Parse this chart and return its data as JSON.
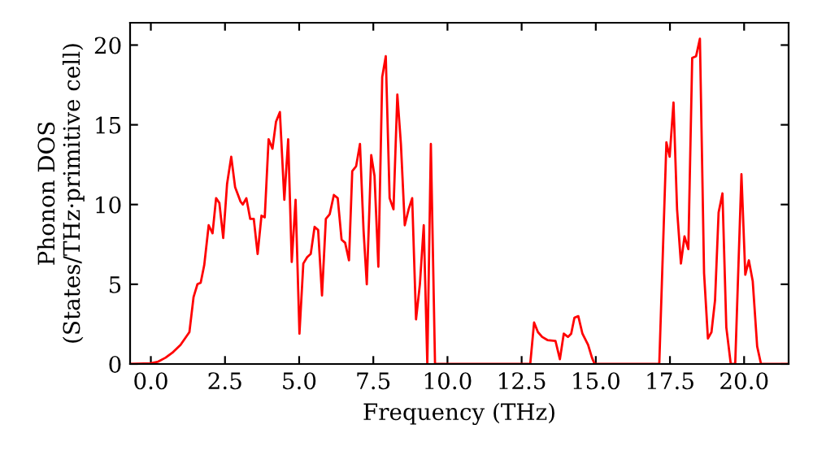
{
  "chart_data": {
    "type": "line",
    "xlabel": "Frequency (THz)",
    "ylabel": "Phonon DOS\n(States/THz·primitive cell)",
    "xlim": [
      -0.7,
      21.5
    ],
    "ylim": [
      0,
      21.4
    ],
    "xticks": [
      {
        "value": 0,
        "label": "0.0"
      },
      {
        "value": 2.5,
        "label": "2.5"
      },
      {
        "value": 5,
        "label": "5.0"
      },
      {
        "value": 7.5,
        "label": "7.5"
      },
      {
        "value": 10,
        "label": "10.0"
      },
      {
        "value": 12.5,
        "label": "12.5"
      },
      {
        "value": 15,
        "label": "15.0"
      },
      {
        "value": 17.5,
        "label": "17.5"
      },
      {
        "value": 20,
        "label": "20.0"
      }
    ],
    "yticks": [
      0,
      5,
      10,
      15,
      20
    ],
    "grid": false,
    "legend": false,
    "marker": "none",
    "line_style": "solid",
    "series": [
      {
        "color": "#ff0000",
        "x": [
          -0.7,
          0,
          0.25,
          0.5,
          0.75,
          1.0,
          1.3,
          1.44,
          1.57,
          1.68,
          1.8,
          1.95,
          2.08,
          2.2,
          2.31,
          2.44,
          2.57,
          2.71,
          2.84,
          3.02,
          3.1,
          3.22,
          3.35,
          3.47,
          3.6,
          3.73,
          3.84,
          3.97,
          4.1,
          4.22,
          4.35,
          4.5,
          4.63,
          4.75,
          4.88,
          5.01,
          5.14,
          5.27,
          5.39,
          5.52,
          5.64,
          5.77,
          5.9,
          6.03,
          6.17,
          6.3,
          6.43,
          6.55,
          6.68,
          6.79,
          6.92,
          7.05,
          7.17,
          7.28,
          7.43,
          7.54,
          7.67,
          7.8,
          7.92,
          8.05,
          8.18,
          8.31,
          8.43,
          8.56,
          8.69,
          8.81,
          8.94,
          9.07,
          9.2,
          9.32,
          9.44,
          9.58,
          12.79,
          12.92,
          13.05,
          13.19,
          13.37,
          13.64,
          13.79,
          13.92,
          14.06,
          14.17,
          14.28,
          14.41,
          14.55,
          14.74,
          14.87,
          14.96,
          17.14,
          17.38,
          17.49,
          17.62,
          17.74,
          17.87,
          17.99,
          18.12,
          18.25,
          18.38,
          18.51,
          18.65,
          18.78,
          18.9,
          19.02,
          19.14,
          19.27,
          19.4,
          19.55,
          19.7,
          19.91,
          20.04,
          20.16,
          20.29,
          20.44,
          20.57,
          21.5
        ],
        "values": [
          0,
          0.05,
          0.15,
          0.4,
          0.75,
          1.2,
          2.0,
          4.2,
          5.0,
          5.1,
          6.2,
          8.7,
          8.2,
          10.4,
          10.1,
          7.9,
          11.3,
          13.0,
          11.1,
          10.2,
          10.0,
          10.4,
          9.1,
          9.1,
          6.9,
          9.3,
          9.2,
          14.1,
          13.5,
          15.2,
          15.8,
          10.3,
          14.1,
          6.4,
          10.3,
          1.9,
          6.3,
          6.7,
          6.9,
          8.6,
          8.4,
          4.3,
          9.1,
          9.4,
          10.6,
          10.4,
          7.8,
          7.6,
          6.5,
          12.1,
          12.4,
          13.8,
          8.4,
          5.0,
          13.1,
          11.8,
          6.1,
          18.0,
          19.3,
          10.4,
          9.7,
          16.9,
          13.8,
          8.7,
          9.7,
          10.4,
          2.8,
          5.0,
          8.7,
          0,
          13.8,
          0,
          0,
          2.6,
          2.0,
          1.7,
          1.5,
          1.45,
          0.3,
          1.9,
          1.7,
          1.9,
          2.9,
          3.0,
          1.9,
          1.2,
          0.4,
          0,
          0,
          13.9,
          13.0,
          16.4,
          9.7,
          6.3,
          8.0,
          7.2,
          19.2,
          19.3,
          20.4,
          5.7,
          1.6,
          2.0,
          4.0,
          9.5,
          10.7,
          2.3,
          0,
          0,
          11.9,
          5.6,
          6.5,
          5.2,
          1.1,
          0,
          0
        ]
      }
    ]
  }
}
